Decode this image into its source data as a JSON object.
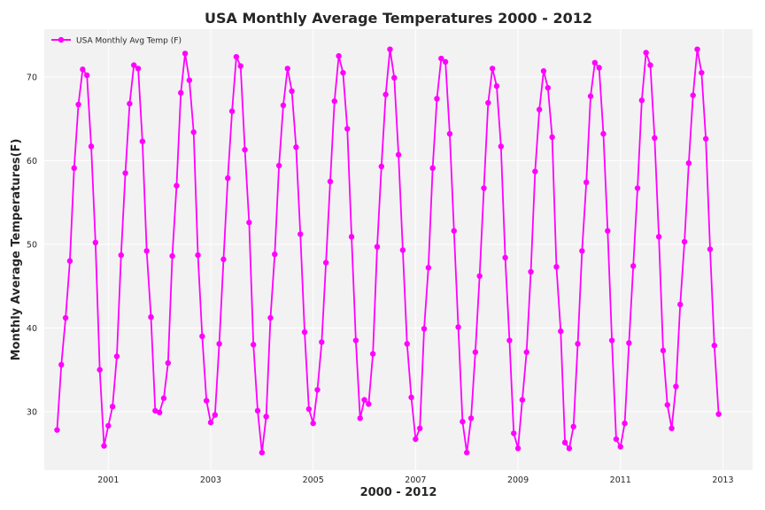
{
  "chart_data": {
    "type": "line",
    "title": "USA Monthly Average Temperatures 2000 - 2012",
    "xlabel": "2000 - 2012",
    "ylabel": "Monthly Average Temperatures(F)",
    "x_range": [
      1999.75,
      2013.58
    ],
    "ylim": [
      23.0,
      75.7
    ],
    "x_ticks": [
      2001,
      2003,
      2005,
      2007,
      2009,
      2011,
      2013
    ],
    "y_ticks": [
      30,
      40,
      50,
      60,
      70
    ],
    "grid": true,
    "legend_placement": "top-left",
    "series": [
      {
        "name": "USA Monthly Avg Temp (F)",
        "color": "#ff00ff",
        "x_start": 2000.0,
        "x_step": 0.0833333,
        "values": [
          27.8,
          35.6,
          41.2,
          48.0,
          59.1,
          66.7,
          70.9,
          70.2,
          61.7,
          50.2,
          35.0,
          25.9,
          28.3,
          30.6,
          36.6,
          48.7,
          58.5,
          66.8,
          71.4,
          71.0,
          62.3,
          49.2,
          41.3,
          30.1,
          29.9,
          31.6,
          35.8,
          48.6,
          57.0,
          68.1,
          72.8,
          69.6,
          63.4,
          48.7,
          39.0,
          31.3,
          28.7,
          29.6,
          38.1,
          48.2,
          57.9,
          65.9,
          72.4,
          71.3,
          61.3,
          52.6,
          38.0,
          30.1,
          25.1,
          29.4,
          41.2,
          48.8,
          59.4,
          66.6,
          71.0,
          68.3,
          61.6,
          51.2,
          39.5,
          30.3,
          28.6,
          32.6,
          38.3,
          47.8,
          57.5,
          67.1,
          72.5,
          70.5,
          63.8,
          50.9,
          38.5,
          29.2,
          31.4,
          30.9,
          36.9,
          49.7,
          59.3,
          67.9,
          73.3,
          69.9,
          60.7,
          49.3,
          38.1,
          31.7,
          26.7,
          28.0,
          39.9,
          47.2,
          59.1,
          67.4,
          72.2,
          71.8,
          63.2,
          51.6,
          40.1,
          28.8,
          25.1,
          29.2,
          37.1,
          46.2,
          56.7,
          66.9,
          71.0,
          68.9,
          61.7,
          48.4,
          38.5,
          27.4,
          25.6,
          31.4,
          37.1,
          46.7,
          58.7,
          66.1,
          70.7,
          68.7,
          62.8,
          47.3,
          39.6,
          26.3,
          25.6,
          28.2,
          38.1,
          49.2,
          57.4,
          67.7,
          71.7,
          71.1,
          63.2,
          51.6,
          38.5,
          26.7,
          25.8,
          28.6,
          38.2,
          47.4,
          56.7,
          67.2,
          72.9,
          71.4,
          62.7,
          50.9,
          37.3,
          30.8,
          28.0,
          33.0,
          42.8,
          50.3,
          59.7,
          67.8,
          73.3,
          70.5,
          62.6,
          49.4,
          37.9,
          29.7
        ]
      }
    ]
  }
}
